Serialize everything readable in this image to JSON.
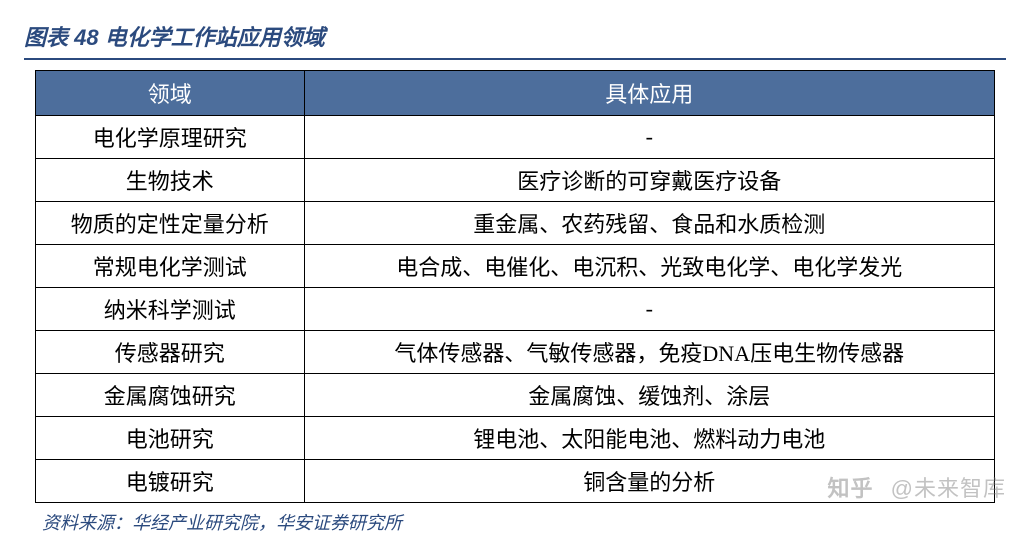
{
  "title": "图表 48 电化学工作站应用领域",
  "header": {
    "domain": "领域",
    "application": "具体应用"
  },
  "rows": [
    {
      "domain": "电化学原理研究",
      "application": "-"
    },
    {
      "domain": "生物技术",
      "application": "医疗诊断的可穿戴医疗设备"
    },
    {
      "domain": "物质的定性定量分析",
      "application": "重金属、农药残留、食品和水质检测"
    },
    {
      "domain": "常规电化学测试",
      "application": "电合成、电催化、电沉积、光致电化学、电化学发光"
    },
    {
      "domain": "纳米科学测试",
      "application": "-"
    },
    {
      "domain": "传感器研究",
      "application": "气体传感器、气敏传感器，免疫DNA压电生物传感器"
    },
    {
      "domain": "金属腐蚀研究",
      "application": "金属腐蚀、缓蚀剂、涂层"
    },
    {
      "domain": "电池研究",
      "application": "锂电池、太阳能电池、燃料动力电池"
    },
    {
      "domain": "电镀研究",
      "application": "铜含量的分析"
    }
  ],
  "source": "资料来源：华经产业研究院，华安证券研究所",
  "watermark": {
    "brand": "知乎",
    "author": "@未来智库"
  },
  "style": {
    "title_color": "#2b4a7e",
    "header_bg": "#4d6e9c",
    "header_fg": "#ffffff",
    "border_color": "#000000",
    "col_widths": [
      "28%",
      "72%"
    ]
  }
}
